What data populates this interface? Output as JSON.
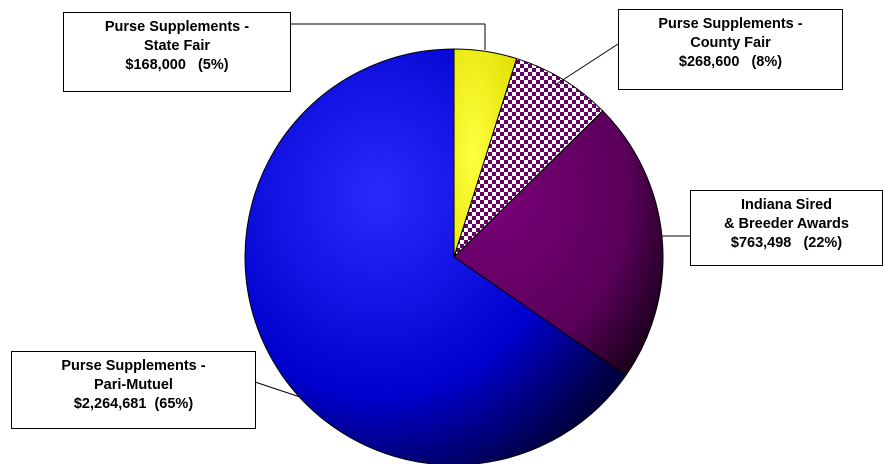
{
  "chart_data": {
    "type": "pie",
    "slices": [
      {
        "name": "Purse Supplements - State Fair",
        "value": 168000,
        "percent": 5,
        "color": "#ffff00",
        "line1": "Purse Supplements -",
        "line2": "State Fair",
        "line3": "$168,000   (5%)"
      },
      {
        "name": "Purse Supplements - County Fair",
        "value": 268600,
        "percent": 8,
        "color": "#660066",
        "pattern": "checkerboard",
        "line1": "Purse Supplements -",
        "line2": "County Fair",
        "line3": "$268,600   (8%)"
      },
      {
        "name": "Indiana Sired & Breeder Awards",
        "value": 763498,
        "percent": 22,
        "color": "#660066",
        "line1": "Indiana Sired",
        "line2": "& Breeder Awards",
        "line3": "$763,498   (22%)"
      },
      {
        "name": "Purse Supplements - Pari-Mutuel",
        "value": 2264681,
        "percent": 65,
        "color": "#0000dd",
        "line1": "Purse Supplements -",
        "line2": "Pari-Mutuel",
        "line3": "$2,264,681  (65%)"
      }
    ]
  }
}
